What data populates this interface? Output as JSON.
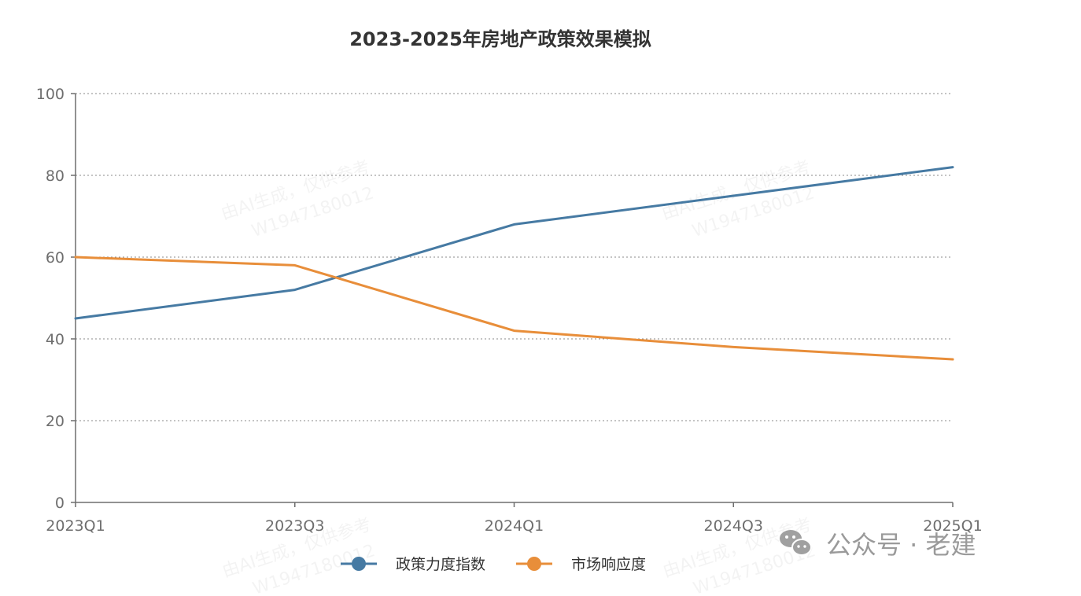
{
  "chart_data": {
    "type": "line",
    "title": "2023-2025年房地产政策效果模拟",
    "categories": [
      "2023Q1",
      "2023Q3",
      "2024Q1",
      "2024Q3",
      "2025Q1"
    ],
    "series": [
      {
        "name": "政策力度指数",
        "values": [
          45,
          52,
          68,
          75,
          82
        ],
        "color": "#467aa3"
      },
      {
        "name": "市场响应度",
        "values": [
          60,
          58,
          42,
          38,
          35
        ],
        "color": "#e88e3a"
      }
    ],
    "ylim": [
      0,
      100
    ],
    "yticks": [
      0,
      20,
      40,
      60,
      80,
      100
    ],
    "grid": true,
    "legend_position": "bottom-center"
  },
  "watermark": {
    "line1": "由AI生成，仅供参考",
    "line2": "W1947180012"
  },
  "wechat_badge": {
    "icon": "wechat-icon",
    "text": "公众号 · 老建"
  }
}
